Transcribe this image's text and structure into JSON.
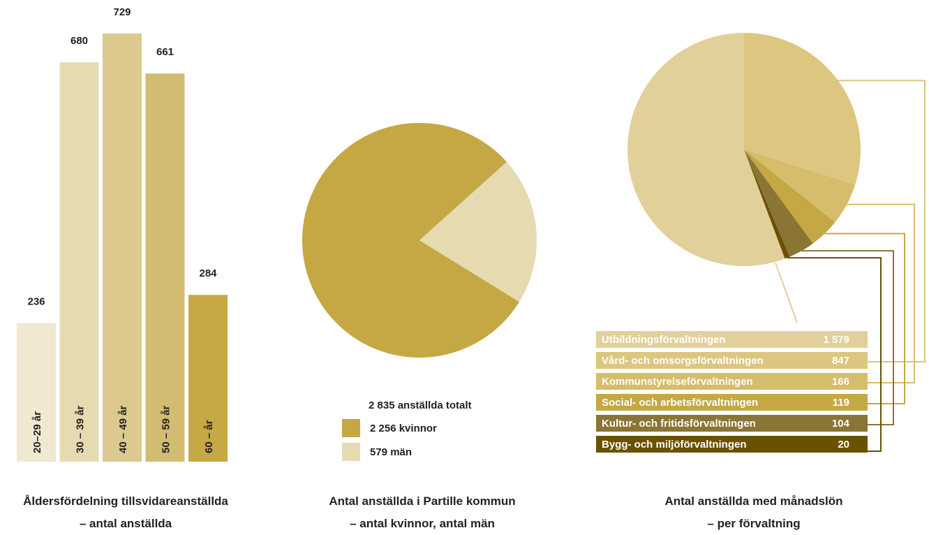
{
  "colors": {
    "age_bars": [
      "#f0e8d0",
      "#e6dbb0",
      "#dcc98e",
      "#d1bc72",
      "#c6a845"
    ],
    "women": "#c5a844",
    "men": "#e6dbb0",
    "departments": [
      "#e2d09a",
      "#dcc680",
      "#d5bd6b",
      "#c5a844",
      "#8a7535",
      "#6a5100"
    ]
  },
  "chart_data": [
    {
      "type": "bar",
      "categories": [
        "20–29 år",
        "30 – 39 år",
        "40 – 49 år",
        "50 – 59 år",
        "60 – år"
      ],
      "values": [
        236,
        680,
        729,
        661,
        284
      ],
      "data_labels": [
        "236",
        "680",
        "729",
        "661",
        "284"
      ],
      "title": "Åldersfördelning tillsvidareanställda",
      "subtitle": "– antal anställda",
      "ylim": [
        0,
        729
      ],
      "grid": false,
      "category_labels_position": "inside-bars-vertical"
    },
    {
      "type": "pie",
      "title": "Antal anställda i Partille kommun",
      "subtitle": "– antal kvinnor, antal män",
      "total_label": "2 835 anställda totalt",
      "categories": [
        "2 256 kvinnor",
        "579 män"
      ],
      "values": [
        2256,
        579
      ],
      "legend_position": "bottom"
    },
    {
      "type": "pie",
      "title": "Antal anställda med månadslön",
      "subtitle": "– per förvaltning",
      "categories": [
        "Utbildningsförvaltningen",
        "Vård- och omsorgsförvaltningen",
        "Kommunstyrelseförvaltningen",
        "Social- och arbetsförvaltningen",
        "Kultur- och fritidsförvaltningen",
        "Bygg- och miljöförvaltningen"
      ],
      "values": [
        1579,
        847,
        166,
        119,
        104,
        20
      ],
      "value_labels": [
        "1 579",
        "847",
        "166",
        "119",
        "104",
        "20"
      ],
      "legend_position": "bottom"
    }
  ]
}
